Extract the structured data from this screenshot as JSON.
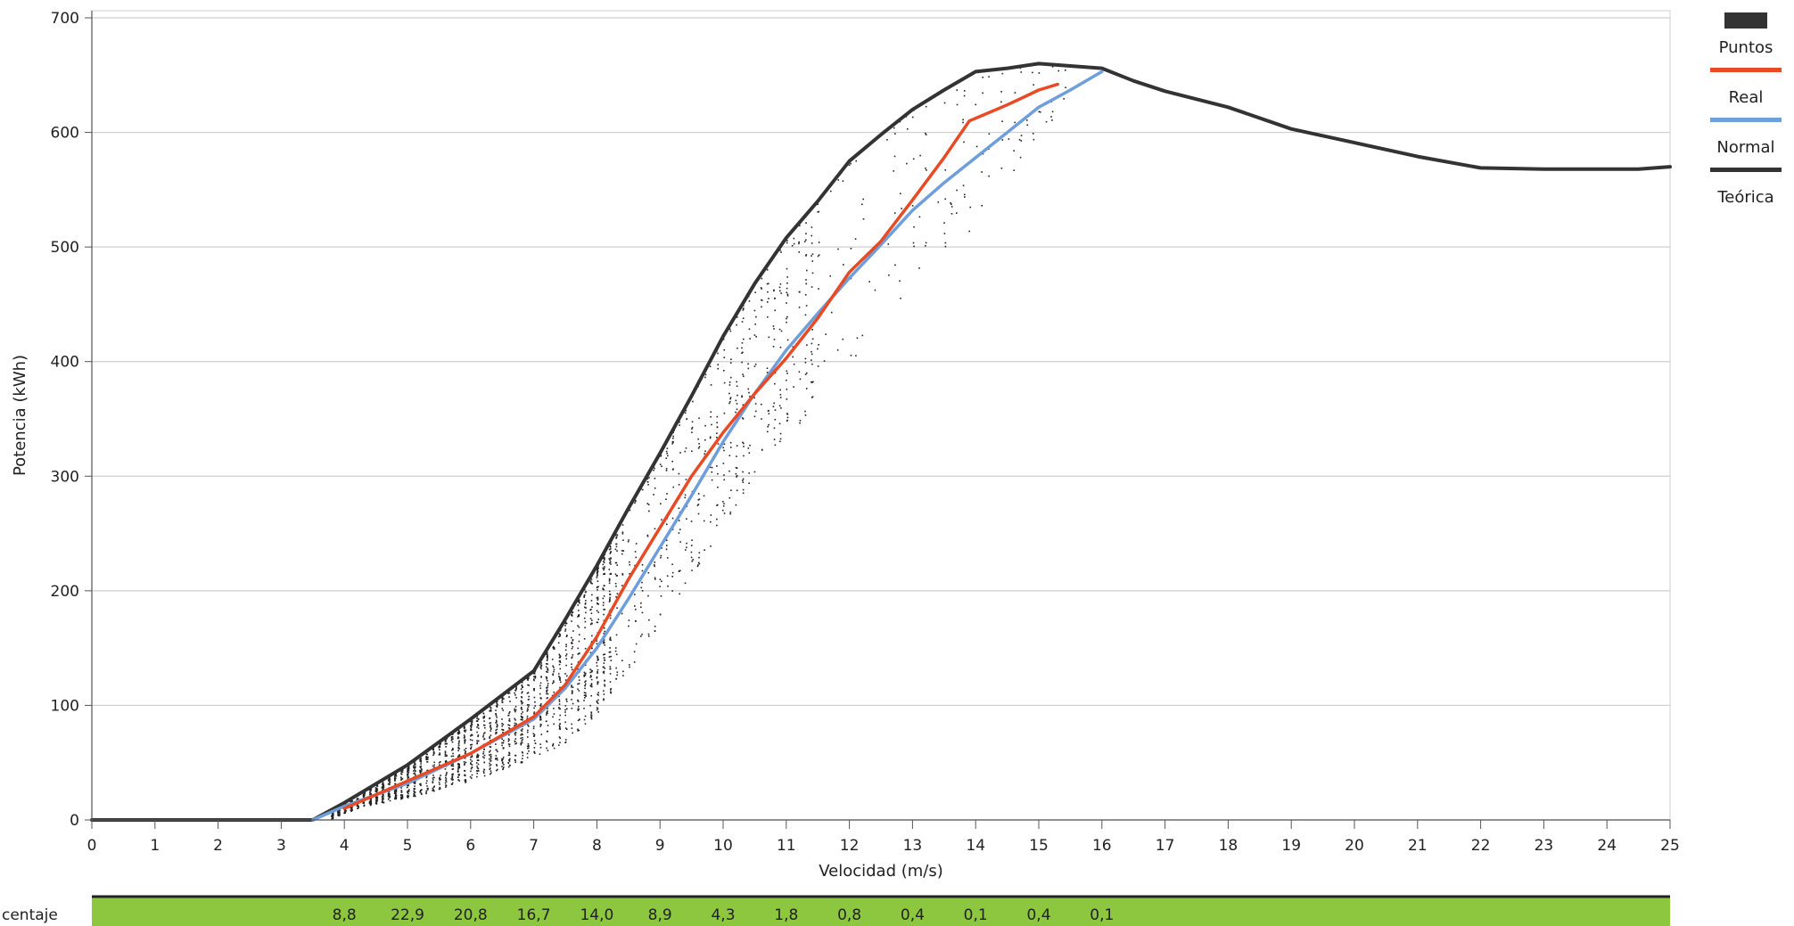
{
  "chart_data": {
    "type": "line",
    "xlabel": "Velocidad (m/s)",
    "ylabel": "Potencia (kWh)",
    "xlim": [
      0,
      25
    ],
    "ylim": [
      0,
      700
    ],
    "x_ticks": [
      0,
      1,
      2,
      3,
      4,
      5,
      6,
      7,
      8,
      9,
      10,
      11,
      12,
      13,
      14,
      15,
      16,
      17,
      18,
      19,
      20,
      21,
      22,
      23,
      24,
      25
    ],
    "y_ticks": [
      0,
      100,
      200,
      300,
      400,
      500,
      600,
      700
    ],
    "grid": "horizontal",
    "legend": {
      "placement": "right",
      "entries": [
        "Puntos",
        "Real",
        "Normal",
        "Teórica"
      ]
    },
    "series": [
      {
        "name": "Teórica",
        "kind": "line",
        "color": "#333333",
        "points": [
          [
            0,
            0
          ],
          [
            3.5,
            0
          ],
          [
            4,
            15
          ],
          [
            5,
            48
          ],
          [
            6,
            88
          ],
          [
            7,
            130
          ],
          [
            7.5,
            175
          ],
          [
            8,
            222
          ],
          [
            8.5,
            272
          ],
          [
            9,
            320
          ],
          [
            9.5,
            370
          ],
          [
            10,
            422
          ],
          [
            10.5,
            468
          ],
          [
            11,
            508
          ],
          [
            11.5,
            540
          ],
          [
            12,
            575
          ],
          [
            12.5,
            598
          ],
          [
            13,
            620
          ],
          [
            13.5,
            637
          ],
          [
            14,
            653
          ],
          [
            14.5,
            656
          ],
          [
            15,
            660
          ],
          [
            15.5,
            658
          ],
          [
            16,
            656
          ],
          [
            16.5,
            645
          ],
          [
            17,
            636
          ],
          [
            18,
            622
          ],
          [
            19,
            603
          ],
          [
            20,
            591
          ],
          [
            21,
            579
          ],
          [
            22,
            569
          ],
          [
            23,
            568
          ],
          [
            24,
            568
          ],
          [
            24.5,
            568
          ],
          [
            25,
            570
          ]
        ]
      },
      {
        "name": "Real",
        "kind": "line",
        "color": "#e84a25",
        "points": [
          [
            4,
            10
          ],
          [
            5,
            34
          ],
          [
            6,
            58
          ],
          [
            7,
            90
          ],
          [
            7.5,
            118
          ],
          [
            8,
            160
          ],
          [
            8.5,
            210
          ],
          [
            9,
            255
          ],
          [
            9.5,
            300
          ],
          [
            10,
            338
          ],
          [
            10.5,
            372
          ],
          [
            11,
            403
          ],
          [
            11.5,
            438
          ],
          [
            12,
            478
          ],
          [
            12.5,
            505
          ],
          [
            13,
            541
          ],
          [
            13.5,
            578
          ],
          [
            13.9,
            610
          ],
          [
            14.5,
            624
          ],
          [
            15,
            637
          ],
          [
            15.3,
            642
          ]
        ]
      },
      {
        "name": "Normal",
        "kind": "line",
        "color": "#6e9edb",
        "points": [
          [
            3.5,
            0
          ],
          [
            4,
            12
          ],
          [
            5,
            32
          ],
          [
            6,
            58
          ],
          [
            7,
            88
          ],
          [
            7.5,
            115
          ],
          [
            8,
            150
          ],
          [
            8.5,
            193
          ],
          [
            9,
            238
          ],
          [
            9.5,
            283
          ],
          [
            10,
            330
          ],
          [
            10.5,
            372
          ],
          [
            11,
            410
          ],
          [
            11.5,
            442
          ],
          [
            12,
            473
          ],
          [
            12.5,
            502
          ],
          [
            13,
            532
          ],
          [
            13.5,
            556
          ],
          [
            14,
            578
          ],
          [
            14.5,
            600
          ],
          [
            15,
            622
          ],
          [
            15.5,
            637
          ],
          [
            16,
            653
          ]
        ]
      },
      {
        "name": "Puntos",
        "kind": "scatter",
        "color": "#222222",
        "description": "Dense cloud of measured points between ~3.8 and ~15.5 m/s"
      }
    ],
    "percentage_row": {
      "label": "centaje",
      "values": [
        {
          "x": 4,
          "text": "8,8"
        },
        {
          "x": 5,
          "text": "22,9"
        },
        {
          "x": 6,
          "text": "20,8"
        },
        {
          "x": 7,
          "text": "16,7"
        },
        {
          "x": 8,
          "text": "14,0"
        },
        {
          "x": 9,
          "text": "8,9"
        },
        {
          "x": 10,
          "text": "4,3"
        },
        {
          "x": 11,
          "text": "1,8"
        },
        {
          "x": 12,
          "text": "0,8"
        },
        {
          "x": 13,
          "text": "0,4"
        },
        {
          "x": 14,
          "text": "0,1"
        },
        {
          "x": 15,
          "text": "0,4"
        },
        {
          "x": 16,
          "text": "0,1"
        }
      ],
      "band_color": "#8dc63f"
    }
  }
}
